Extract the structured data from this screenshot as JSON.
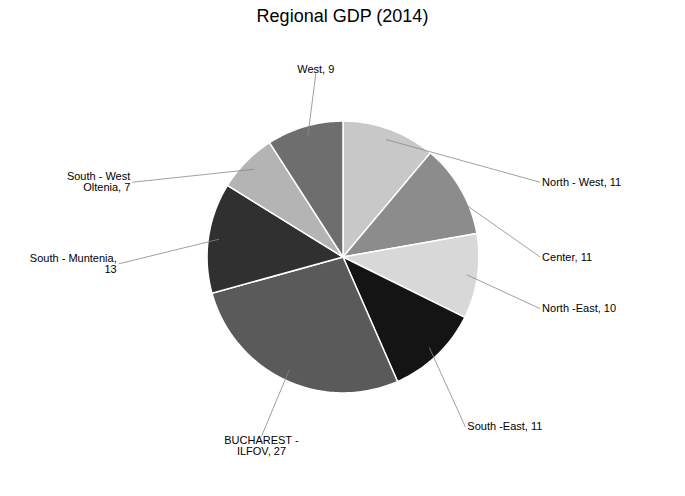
{
  "chart_data": {
    "type": "pie",
    "title": "Regional GDP (2014)",
    "categories": [
      "North - West, 11",
      "Center, 11",
      "North -East, 10",
      "South -East, 11",
      "BUCHAREST -\nILFOV, 27",
      "South - Muntenia,\n13",
      "South - West\nOltenia, 7",
      "West, 9"
    ],
    "values": [
      11,
      11,
      10,
      11,
      27,
      13,
      7,
      9
    ],
    "colors": [
      "#c8c8c8",
      "#8c8c8c",
      "#d8d8d8",
      "#141414",
      "#5a5a5a",
      "#303030",
      "#b4b4b4",
      "#6e6e6e"
    ]
  }
}
